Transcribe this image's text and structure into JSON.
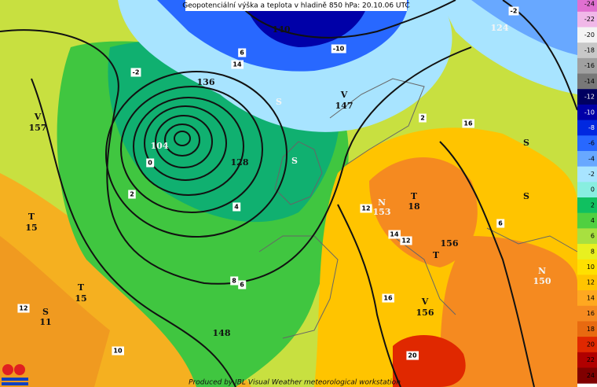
{
  "header": {
    "title": "Geopotenciální výška a teplota v hladině 850 hPa: 20.10.06 UTC"
  },
  "legend": {
    "values": [
      -24,
      -22,
      -20,
      -18,
      -16,
      -14,
      -12,
      -10,
      -8,
      -6,
      -4,
      -2,
      0,
      2,
      4,
      6,
      8,
      10,
      12,
      14,
      16,
      18,
      20,
      22,
      24
    ],
    "colors": [
      "#e070d0",
      "#f0b8e8",
      "#f4f4f4",
      "#c8c8c8",
      "#a0a0a0",
      "#787878",
      "#000060",
      "#0000a8",
      "#0028e0",
      "#2868ff",
      "#68a8ff",
      "#a8e4ff",
      "#88eee0",
      "#10c060",
      "#50d040",
      "#a8e040",
      "#e8f020",
      "#ffe000",
      "#ffc400",
      "#ffa820",
      "#f58a20",
      "#e86a10",
      "#e02800",
      "#b00000",
      "#800000"
    ]
  },
  "labels": [
    {
      "text": "V",
      "style": "big"
    },
    {
      "text": "157",
      "style": "big"
    },
    {
      "text": "T",
      "style": "big"
    },
    {
      "text": "15",
      "style": "big"
    },
    {
      "text": "T",
      "style": "big"
    },
    {
      "text": "15",
      "style": "big"
    },
    {
      "text": "S",
      "style": "big"
    },
    {
      "text": "11",
      "style": "big"
    },
    {
      "text": "12",
      "style": "box"
    },
    {
      "text": "10",
      "style": "box"
    },
    {
      "text": "148",
      "style": "big"
    },
    {
      "text": "8",
      "style": "box"
    },
    {
      "text": "6",
      "style": "box"
    },
    {
      "text": "4",
      "style": "box"
    },
    {
      "text": "2",
      "style": "box"
    },
    {
      "text": "0",
      "style": "box"
    },
    {
      "text": "104",
      "style": "light"
    },
    {
      "text": "128",
      "style": "big"
    },
    {
      "text": "136",
      "style": "big"
    },
    {
      "text": "-2",
      "style": "box"
    },
    {
      "text": "140",
      "style": "big"
    },
    {
      "text": "-10",
      "style": "box"
    },
    {
      "text": "V",
      "style": "big"
    },
    {
      "text": "147",
      "style": "big"
    },
    {
      "text": "S",
      "style": "light"
    },
    {
      "text": "S",
      "style": "light"
    },
    {
      "text": "2",
      "style": "box"
    },
    {
      "text": "16",
      "style": "box"
    },
    {
      "text": "124",
      "style": "light"
    },
    {
      "text": "-2",
      "style": "box"
    },
    {
      "text": "N",
      "style": "light"
    },
    {
      "text": "153",
      "style": "light"
    },
    {
      "text": "T",
      "style": "big"
    },
    {
      "text": "18",
      "style": "big"
    },
    {
      "text": "12",
      "style": "box"
    },
    {
      "text": "14",
      "style": "box"
    },
    {
      "text": "12",
      "style": "box"
    },
    {
      "text": "156",
      "style": "big"
    },
    {
      "text": "T",
      "style": "big"
    },
    {
      "text": "6",
      "style": "box"
    },
    {
      "text": "N",
      "style": "light"
    },
    {
      "text": "150",
      "style": "light"
    },
    {
      "text": "V",
      "style": "big"
    },
    {
      "text": "156",
      "style": "big"
    },
    {
      "text": "16",
      "style": "box"
    },
    {
      "text": "20",
      "style": "box"
    },
    {
      "text": "S",
      "style": "big"
    },
    {
      "text": "S",
      "style": "big"
    },
    {
      "text": "14",
      "style": "box"
    },
    {
      "text": "6",
      "style": "box"
    }
  ],
  "footer": "Produced by IBL Visual Weather meteorological workstation"
}
